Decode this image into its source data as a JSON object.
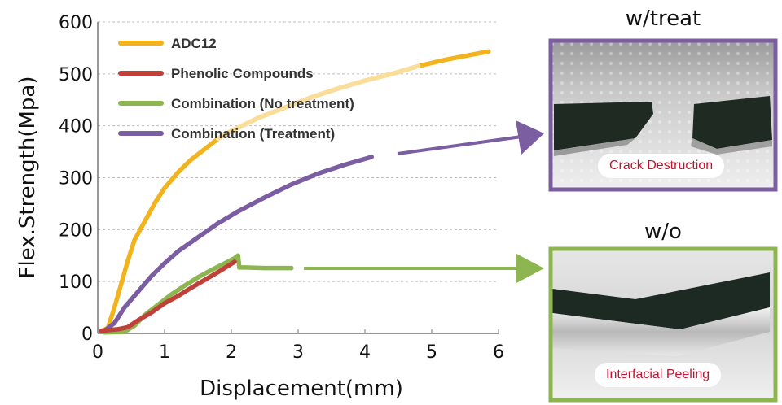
{
  "chart_data": {
    "type": "line",
    "xlabel": "Displacement(mm)",
    "ylabel": "Flex.Strength(Mpa)",
    "xlim": [
      0,
      6
    ],
    "ylim": [
      0,
      600
    ],
    "xticks": [
      "0",
      "1",
      "2",
      "3",
      "4",
      "5",
      "6"
    ],
    "yticks": [
      "0",
      "100",
      "200",
      "300",
      "400",
      "500",
      "600"
    ],
    "grid": "horizontal dashed",
    "legend_placement": "top-left",
    "series": [
      {
        "name": "ADC12",
        "color": "#F2B31C",
        "x": [
          0.05,
          0.15,
          0.25,
          0.35,
          0.45,
          0.55,
          0.7,
          0.85,
          1.0,
          1.2,
          1.4,
          1.6,
          1.8,
          2.0,
          2.4,
          2.8,
          3.2,
          3.6,
          4.0,
          4.4,
          4.8,
          5.2,
          5.6,
          5.85
        ],
        "y": [
          5,
          10,
          50,
          95,
          140,
          180,
          215,
          250,
          280,
          310,
          335,
          355,
          375,
          390,
          415,
          435,
          455,
          472,
          487,
          500,
          515,
          527,
          537,
          543
        ]
      },
      {
        "name": "Phenolic Compounds",
        "color": "#C0403A",
        "x": [
          0.05,
          0.3,
          0.45,
          0.6,
          0.8,
          1.0,
          1.2,
          1.4,
          1.6,
          1.8,
          1.95,
          2.05
        ],
        "y": [
          5,
          8,
          12,
          25,
          40,
          58,
          72,
          88,
          103,
          118,
          130,
          138
        ]
      },
      {
        "name": "Combination (No treatment)",
        "color": "#8DB651",
        "x": [
          0.1,
          0.4,
          0.55,
          0.7,
          0.9,
          1.1,
          1.3,
          1.5,
          1.7,
          1.9,
          2.05,
          2.1,
          2.12,
          2.2,
          2.5,
          2.9
        ],
        "y": [
          2,
          3,
          15,
          35,
          55,
          75,
          92,
          108,
          122,
          135,
          145,
          150,
          127,
          127,
          126,
          126
        ],
        "continues_to": {
          "x": 4.3,
          "y": 126
        }
      },
      {
        "name": "Combination (Treatment)",
        "color": "#7B5DA2",
        "x": [
          0.1,
          0.25,
          0.4,
          0.6,
          0.8,
          1.0,
          1.2,
          1.5,
          1.8,
          2.1,
          2.5,
          2.9,
          3.3,
          3.7,
          4.1
        ],
        "y": [
          5,
          20,
          50,
          80,
          110,
          135,
          158,
          185,
          212,
          235,
          262,
          287,
          308,
          325,
          340
        ],
        "continues_to": {
          "x": 6.5,
          "y": 375
        }
      }
    ]
  },
  "panels": {
    "treat": {
      "title": "w/treat",
      "label": "Crack Destruction",
      "border_color": "#7B5DA2"
    },
    "untreated": {
      "title": "w/o",
      "label": "Interfacial Peeling",
      "border_color": "#8DB651"
    }
  }
}
